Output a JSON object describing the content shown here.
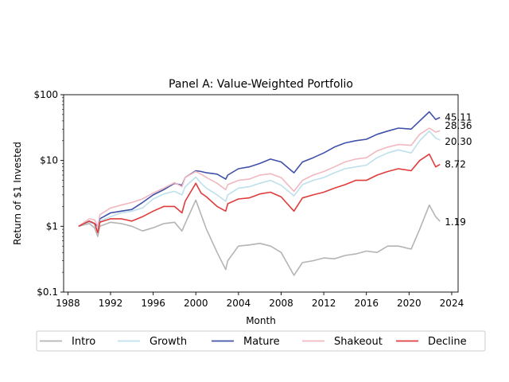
{
  "chart_data": {
    "type": "line",
    "title": "Panel A: Value-Weighted Portfolio",
    "xlabel": "Month",
    "ylabel": "Return of $1 Invested",
    "y_scale": "log",
    "xlim": [
      1987.6,
      2024.6
    ],
    "ylim": [
      0.1,
      100
    ],
    "x_ticks": [
      1988,
      1992,
      1996,
      2000,
      2004,
      2008,
      2012,
      2016,
      2020,
      2024
    ],
    "x_tick_labels": [
      "1988",
      "1992",
      "1996",
      "2000",
      "2004",
      "2008",
      "2012",
      "2016",
      "2020",
      "2024"
    ],
    "y_ticks": [
      0.1,
      1,
      10,
      100
    ],
    "y_tick_labels": [
      "$0.1",
      "$1",
      "$10",
      "$100"
    ],
    "grid": false,
    "legend_position": "bottom",
    "x": [
      1989,
      1990,
      1990.5,
      1990.8,
      1991,
      1992,
      1993,
      1994,
      1995,
      1996,
      1997,
      1998,
      1998.7,
      1999,
      2000,
      2000.5,
      2001,
      2002,
      2002.8,
      2003,
      2004,
      2005,
      2006,
      2007,
      2008,
      2009.2,
      2010,
      2011,
      2012,
      2013,
      2014,
      2015,
      2016,
      2017,
      2018,
      2019,
      2020.2,
      2021,
      2021.9,
      2022.5,
      2022.9
    ],
    "series": [
      {
        "name": "Intro",
        "color": "#b4b4b4",
        "values": [
          1.0,
          1.1,
          0.95,
          0.7,
          1.0,
          1.15,
          1.1,
          1.0,
          0.85,
          0.95,
          1.1,
          1.15,
          0.85,
          1.1,
          2.5,
          1.5,
          0.9,
          0.4,
          0.22,
          0.3,
          0.5,
          0.52,
          0.55,
          0.5,
          0.4,
          0.18,
          0.28,
          0.3,
          0.33,
          0.32,
          0.36,
          0.38,
          0.42,
          0.4,
          0.5,
          0.5,
          0.45,
          0.9,
          2.1,
          1.4,
          1.19
        ]
      },
      {
        "name": "Growth",
        "color": "#bde0ec",
        "values": [
          1.0,
          1.15,
          1.1,
          0.9,
          1.2,
          1.4,
          1.6,
          1.7,
          1.9,
          2.6,
          3.1,
          3.4,
          3.0,
          4.0,
          5.6,
          4.5,
          3.8,
          3.0,
          2.4,
          3.0,
          3.8,
          4.0,
          4.5,
          5.0,
          4.2,
          2.9,
          4.3,
          5.0,
          5.5,
          6.5,
          7.5,
          8.0,
          8.5,
          11.0,
          13.0,
          14.5,
          13.0,
          20.0,
          28.0,
          22.0,
          20.3
        ]
      },
      {
        "name": "Mature",
        "color": "#3f51a8",
        "values": [
          1.0,
          1.2,
          1.1,
          1.0,
          1.3,
          1.6,
          1.7,
          1.8,
          2.3,
          3.0,
          3.6,
          4.5,
          4.2,
          5.5,
          7.0,
          6.8,
          6.5,
          6.2,
          5.2,
          6.0,
          7.5,
          8.0,
          9.0,
          10.5,
          9.5,
          6.5,
          9.5,
          11.0,
          13.0,
          16.0,
          18.5,
          20.0,
          21.0,
          25.0,
          28.0,
          31.0,
          30.0,
          40.0,
          55.0,
          42.0,
          45.11
        ]
      },
      {
        "name": "Shakeout",
        "color": "#f1b8bf",
        "values": [
          1.0,
          1.3,
          1.25,
          1.0,
          1.5,
          1.9,
          2.1,
          2.3,
          2.6,
          3.2,
          3.8,
          4.6,
          4.0,
          5.5,
          6.8,
          6.2,
          5.5,
          4.5,
          3.6,
          4.3,
          5.0,
          5.2,
          6.0,
          6.3,
          5.5,
          3.4,
          5.0,
          6.0,
          6.8,
          8.0,
          9.5,
          10.5,
          11.0,
          14.0,
          16.0,
          17.5,
          17.0,
          25.0,
          31.0,
          27.0,
          28.36
        ]
      },
      {
        "name": "Decline",
        "color": "#e03c3c",
        "values": [
          1.0,
          1.2,
          1.1,
          0.8,
          1.15,
          1.3,
          1.3,
          1.2,
          1.4,
          1.7,
          2.0,
          2.0,
          1.6,
          2.4,
          4.5,
          3.2,
          2.8,
          2.0,
          1.7,
          2.2,
          2.6,
          2.7,
          3.1,
          3.3,
          2.8,
          1.7,
          2.7,
          3.0,
          3.3,
          3.8,
          4.3,
          5.0,
          5.0,
          6.0,
          6.8,
          7.5,
          7.0,
          10.0,
          12.5,
          8.0,
          8.72
        ]
      }
    ],
    "end_labels": [
      "45.11",
      "28.36",
      "20.30",
      "8.72",
      "1.19"
    ]
  }
}
